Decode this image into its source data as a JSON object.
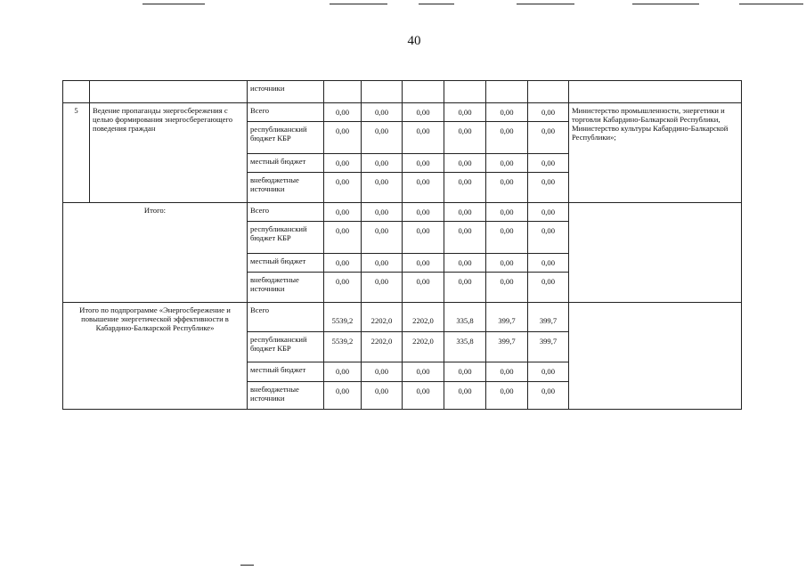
{
  "page_number": "40",
  "rows": {
    "top_partial": {
      "source": "источники"
    },
    "item5": {
      "number": "5",
      "name": "Ведение пропаганды энергосбережения с целью формирования энергосберегающего поведения граждан",
      "executor": "Министерство промышленности, энергетики и торговли Кабардино-Балкарской Республики, Министерство культуры Кабардино-Балкарской Республики»;",
      "lines": [
        {
          "source": "Всего",
          "values": [
            "0,00",
            "0,00",
            "0,00",
            "0,00",
            "0,00",
            "0,00"
          ]
        },
        {
          "source": "республиканский бюджет КБР",
          "values": [
            "0,00",
            "0,00",
            "0,00",
            "0,00",
            "0,00",
            "0,00"
          ]
        },
        {
          "source": "местный бюджет",
          "values": [
            "0,00",
            "0,00",
            "0,00",
            "0,00",
            "0,00",
            "0,00"
          ]
        },
        {
          "source": "внебюджетные источники",
          "values": [
            "0,00",
            "0,00",
            "0,00",
            "0,00",
            "0,00",
            "0,00"
          ]
        }
      ]
    },
    "total": {
      "label": "Итого:",
      "lines": [
        {
          "source": "Всего",
          "values": [
            "0,00",
            "0,00",
            "0,00",
            "0,00",
            "0,00",
            "0,00"
          ]
        },
        {
          "source": "республиканский бюджет КБР",
          "values": [
            "0,00",
            "0,00",
            "0,00",
            "0,00",
            "0,00",
            "0,00"
          ]
        },
        {
          "source": "местный бюджет",
          "values": [
            "0,00",
            "0,00",
            "0,00",
            "0,00",
            "0,00",
            "0,00"
          ]
        },
        {
          "source": "внебюджетные источники",
          "values": [
            "0,00",
            "0,00",
            "0,00",
            "0,00",
            "0,00",
            "0,00"
          ]
        }
      ]
    },
    "subprogram_total": {
      "label": "Итого по подпрограмме «Энергосбережение и повышение энергетической эффективности в Кабардино-Балкарской Республике»",
      "lines": [
        {
          "source": "Всего",
          "values": [
            "5539,2",
            "2202,0",
            "2202,0",
            "335,8",
            "399,7",
            "399,7"
          ]
        },
        {
          "source": "республиканский бюджет КБР",
          "values": [
            "5539,2",
            "2202,0",
            "2202,0",
            "335,8",
            "399,7",
            "399,7"
          ]
        },
        {
          "source": "местный бюджет",
          "values": [
            "0,00",
            "0,00",
            "0,00",
            "0,00",
            "0,00",
            "0,00"
          ]
        },
        {
          "source": "внебюджетные источники",
          "values": [
            "0,00",
            "0,00",
            "0,00",
            "0,00",
            "0,00",
            "0,00"
          ]
        }
      ]
    }
  }
}
